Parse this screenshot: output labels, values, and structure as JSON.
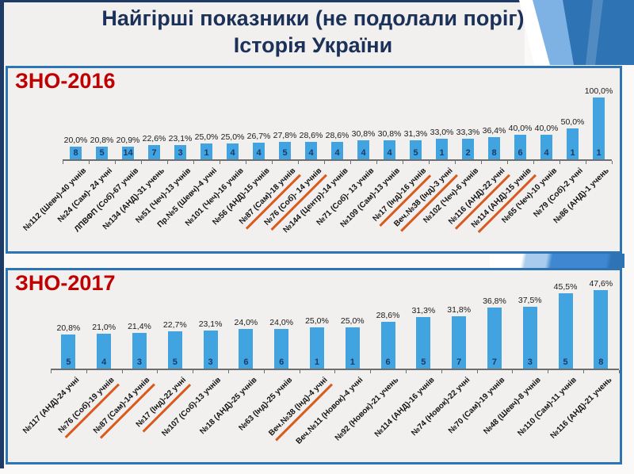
{
  "title": {
    "line1": "Найгірші показники (не подолали поріг)",
    "line2": "Історія України"
  },
  "colors": {
    "bar": "#41A4E0",
    "bar_count_text": "#1A3A68",
    "panel_border": "#2E75B6",
    "panel_background": "#F1F0EE",
    "chart_label_red": "#C00000",
    "title_navy": "#1B3159",
    "flag_underline_orange": "#D95A1E",
    "axis_gray": "#6E6E6E",
    "deco_light_blue": "#7FB2E4",
    "deco_medium_blue": "#2E74B5"
  },
  "chart_data": [
    {
      "type": "bar",
      "title": "ЗНО-2016",
      "unit": "%",
      "value_axis_visible": false,
      "legend": "none",
      "bars": [
        {
          "category": "№112 (Шевч)-40 учнів",
          "value": 20.0,
          "value_label": "20,0%",
          "count": 8,
          "flagged": false
        },
        {
          "category": "№24 (Сам)- 24 учні",
          "value": 20.8,
          "value_label": "20,8%",
          "count": 5,
          "flagged": false
        },
        {
          "category": "ЛПВФП (Соб)-67 учнів",
          "value": 20.9,
          "value_label": "20,9%",
          "count": 14,
          "flagged": false
        },
        {
          "category": "№134 (АНД)-31 учень",
          "value": 22.6,
          "value_label": "22,6%",
          "count": 7,
          "flagged": false
        },
        {
          "category": "№51 (Чеч)-13 учнів",
          "value": 23.1,
          "value_label": "23,1%",
          "count": 3,
          "flagged": false
        },
        {
          "category": "Пр.№5 (Шевч)-4 учні",
          "value": 25.0,
          "value_label": "25,0%",
          "count": 1,
          "flagged": false
        },
        {
          "category": "№101 (Чеч)-16 учнів",
          "value": 25.0,
          "value_label": "25,0%",
          "count": 4,
          "flagged": false
        },
        {
          "category": "№56 (АНД)-15 учнів",
          "value": 26.7,
          "value_label": "26,7%",
          "count": 4,
          "flagged": false
        },
        {
          "category": "№87 (Сам)-18 учнів",
          "value": 27.8,
          "value_label": "27,8%",
          "count": 5,
          "flagged": true
        },
        {
          "category": "№76 (Соб)- 14 учнів",
          "value": 28.6,
          "value_label": "28,6%",
          "count": 4,
          "flagged": true
        },
        {
          "category": "№144 (Центр)-14 учнів",
          "value": 28.6,
          "value_label": "28,6%",
          "count": 4,
          "flagged": false
        },
        {
          "category": "№71 (Соб)- 13 учнів",
          "value": 30.8,
          "value_label": "30,8%",
          "count": 4,
          "flagged": false
        },
        {
          "category": "№109 (Сам)-13 учнів",
          "value": 30.8,
          "value_label": "30,8%",
          "count": 4,
          "flagged": false
        },
        {
          "category": "№17 (Інд)-16 учнів",
          "value": 31.3,
          "value_label": "31,3%",
          "count": 5,
          "flagged": true
        },
        {
          "category": "Веч.№38 (Інд)-3 учні",
          "value": 33.0,
          "value_label": "33,0%",
          "count": 1,
          "flagged": true
        },
        {
          "category": "№102 (Чеч)-6 учнів",
          "value": 33.3,
          "value_label": "33,3%",
          "count": 2,
          "flagged": false
        },
        {
          "category": "№116 (АНД)-22 учні",
          "value": 36.4,
          "value_label": "36,4%",
          "count": 8,
          "flagged": true
        },
        {
          "category": "№114 (АНД)-15 учнів",
          "value": 40.0,
          "value_label": "40,0%",
          "count": 6,
          "flagged": true
        },
        {
          "category": "№65 (Чеч)-10 учнів",
          "value": 40.0,
          "value_label": "40,0%",
          "count": 4,
          "flagged": false
        },
        {
          "category": "№79 (Соб)-2 учні",
          "value": 50.0,
          "value_label": "50,0%",
          "count": 1,
          "flagged": false
        },
        {
          "category": "№86 (АНД)-1 учень",
          "value": 100.0,
          "value_label": "100,0%",
          "count": 1,
          "flagged": false
        }
      ]
    },
    {
      "type": "bar",
      "title": "ЗНО-2017",
      "unit": "%",
      "value_axis_visible": false,
      "legend": "none",
      "bars": [
        {
          "category": "№117 (АНД)-24 учні",
          "value": 20.8,
          "value_label": "20,8%",
          "count": 5,
          "flagged": false
        },
        {
          "category": "№76 (Соб)-19 учнів",
          "value": 21.0,
          "value_label": "21,0%",
          "count": 4,
          "flagged": true
        },
        {
          "category": "№87 (Сам)-14 учнів",
          "value": 21.4,
          "value_label": "21,4%",
          "count": 3,
          "flagged": true
        },
        {
          "category": "№17 (Інд)-22 учні",
          "value": 22.7,
          "value_label": "22,7%",
          "count": 5,
          "flagged": true
        },
        {
          "category": "№107 (Соб)-13 учнів",
          "value": 23.1,
          "value_label": "23,1%",
          "count": 3,
          "flagged": false
        },
        {
          "category": "№18 (АНД)-25 учнів",
          "value": 24.0,
          "value_label": "24,0%",
          "count": 6,
          "flagged": false
        },
        {
          "category": "№63 (Інд)-25 учнів",
          "value": 24.0,
          "value_label": "24,0%",
          "count": 6,
          "flagged": false
        },
        {
          "category": "Веч.№38 (Інд)-4 учні",
          "value": 25.0,
          "value_label": "25,0%",
          "count": 1,
          "flagged": true
        },
        {
          "category": "Веч.№11 (Новок)-4 учні",
          "value": 25.0,
          "value_label": "25,0%",
          "count": 1,
          "flagged": false
        },
        {
          "category": "№92 (Новок)-21 учень",
          "value": 28.6,
          "value_label": "28,6%",
          "count": 6,
          "flagged": false
        },
        {
          "category": "№114 (АНД)-16 учнів",
          "value": 31.3,
          "value_label": "31,3%",
          "count": 5,
          "flagged": false
        },
        {
          "category": "№74 (Новок)-22 учні",
          "value": 31.8,
          "value_label": "31,8%",
          "count": 7,
          "flagged": false
        },
        {
          "category": "№70 (Сам)-19 учнів",
          "value": 36.8,
          "value_label": "36,8%",
          "count": 7,
          "flagged": false
        },
        {
          "category": "№48 (Шевч)-8 учнів",
          "value": 37.5,
          "value_label": "37,5%",
          "count": 3,
          "flagged": false
        },
        {
          "category": "№110 (Сам)-11 учнів",
          "value": 45.5,
          "value_label": "45,5%",
          "count": 5,
          "flagged": false
        },
        {
          "category": "№116 (АНД)-21 учень",
          "value": 47.6,
          "value_label": "47,6%",
          "count": 8,
          "flagged": false
        }
      ]
    }
  ]
}
